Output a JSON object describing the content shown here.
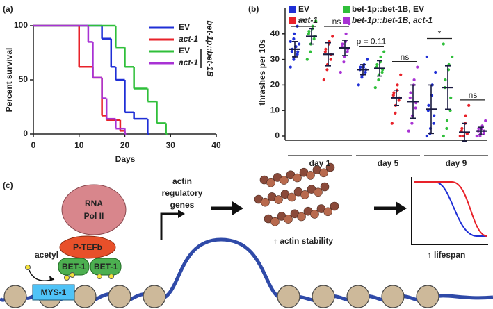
{
  "chart_data": [
    {
      "type": "line",
      "panel_label": "(a)",
      "xlabel": "Days",
      "ylabel": "Percent survival",
      "xlim": [
        0,
        40
      ],
      "xticks": [
        0,
        10,
        20,
        30,
        40
      ],
      "ylim": [
        0,
        100
      ],
      "yticks": [
        0,
        50,
        100
      ],
      "legend_group": "bet-1p::bet-1B",
      "series": [
        {
          "name": "EV",
          "color": "#1f2fd6",
          "x": [
            0,
            15,
            17,
            18,
            20,
            22,
            25
          ],
          "values": [
            100,
            88,
            62,
            50,
            20,
            14,
            0
          ]
        },
        {
          "name": "act-1",
          "color": "#e8222a",
          "x": [
            0,
            10,
            13,
            15,
            16,
            19,
            20
          ],
          "values": [
            100,
            62,
            52,
            17,
            13,
            3,
            0
          ]
        },
        {
          "name": "EV",
          "color": "#2fbf3a",
          "x": [
            0,
            18,
            20,
            22,
            25,
            27,
            29
          ],
          "values": [
            100,
            80,
            62,
            42,
            30,
            10,
            0
          ]
        },
        {
          "name": "act-1",
          "color": "#a832d4",
          "x": [
            0,
            12,
            13,
            15,
            16,
            18,
            20
          ],
          "values": [
            100,
            85,
            52,
            33,
            14,
            5,
            0
          ]
        }
      ]
    },
    {
      "type": "dotplot",
      "panel_label": "(b)",
      "ylabel": "thrashes per 10s",
      "ylim": [
        0,
        50
      ],
      "yticks": [
        0,
        10,
        20,
        30,
        40
      ],
      "categories": [
        "day 1",
        "day 5",
        "day 9"
      ],
      "annotations": [
        "***",
        "ns",
        "p = 0.11",
        "ns",
        "*",
        "ns"
      ],
      "series": [
        {
          "name": "EV",
          "color": "#1f2fd6",
          "values": [
            34,
            26,
            10.5
          ],
          "sd": [
            3,
            2,
            9.5
          ],
          "points": [
            [
              27,
              30,
              31,
              32,
              33,
              33,
              34,
              35,
              35,
              36,
              37,
              38,
              40,
              43
            ],
            [
              20,
              23,
              24,
              25,
              26,
              26,
              27,
              27,
              28,
              30
            ],
            [
              0,
              1,
              3,
              5,
              8,
              10,
              12,
              16,
              20,
              25,
              31
            ]
          ]
        },
        {
          "name": "bet-1p::bet-1B, EV",
          "color": "#2fbf3a",
          "values": [
            39,
            26.5,
            19
          ],
          "sd": [
            3,
            3,
            8.5
          ],
          "points": [
            [
              30,
              33,
              36,
              38,
              39,
              40,
              41,
              42,
              43,
              45
            ],
            [
              19,
              22,
              24,
              25,
              26,
              27,
              28,
              29,
              31,
              33
            ],
            [
              0,
              3,
              6,
              10,
              15,
              19,
              22,
              26,
              28,
              31,
              36
            ]
          ]
        },
        {
          "name": "act-1",
          "color": "#e8222a",
          "values": [
            32,
            15,
            1.5
          ],
          "sd": [
            4.5,
            3,
            3.5
          ],
          "points": [
            [
              22,
              26,
              28,
              30,
              32,
              33,
              34,
              36,
              37,
              39
            ],
            [
              5,
              9,
              12,
              14,
              15,
              16,
              17,
              18,
              20,
              24
            ],
            [
              0,
              0,
              0,
              1,
              1,
              2,
              3,
              5,
              8,
              12
            ]
          ]
        },
        {
          "name": "bet-1p::bet-1B, act-1",
          "color": "#a832d4",
          "values": [
            34.5,
            13.5,
            2
          ],
          "sd": [
            3,
            6.5,
            1.5
          ],
          "points": [
            [
              25,
              29,
              31,
              33,
              34,
              35,
              36,
              37,
              40,
              44
            ],
            [
              2,
              5,
              8,
              11,
              13,
              15,
              17,
              20,
              22,
              27
            ],
            [
              0,
              0,
              1,
              1,
              2,
              2,
              3,
              3,
              4,
              6
            ]
          ]
        }
      ]
    }
  ],
  "diagram": {
    "panel_label": "(c)",
    "rna_pol": [
      "RNA",
      "Pol II"
    ],
    "ptefb": "P-TEFb",
    "bet1": [
      "BET-1",
      "BET-1"
    ],
    "acetyl": "acetyl",
    "mys1": "MYS-1",
    "genes": [
      "actin",
      "regulatory",
      "genes"
    ],
    "actin_stability": "↑ actin stability",
    "lifespan": "↑ lifespan"
  }
}
